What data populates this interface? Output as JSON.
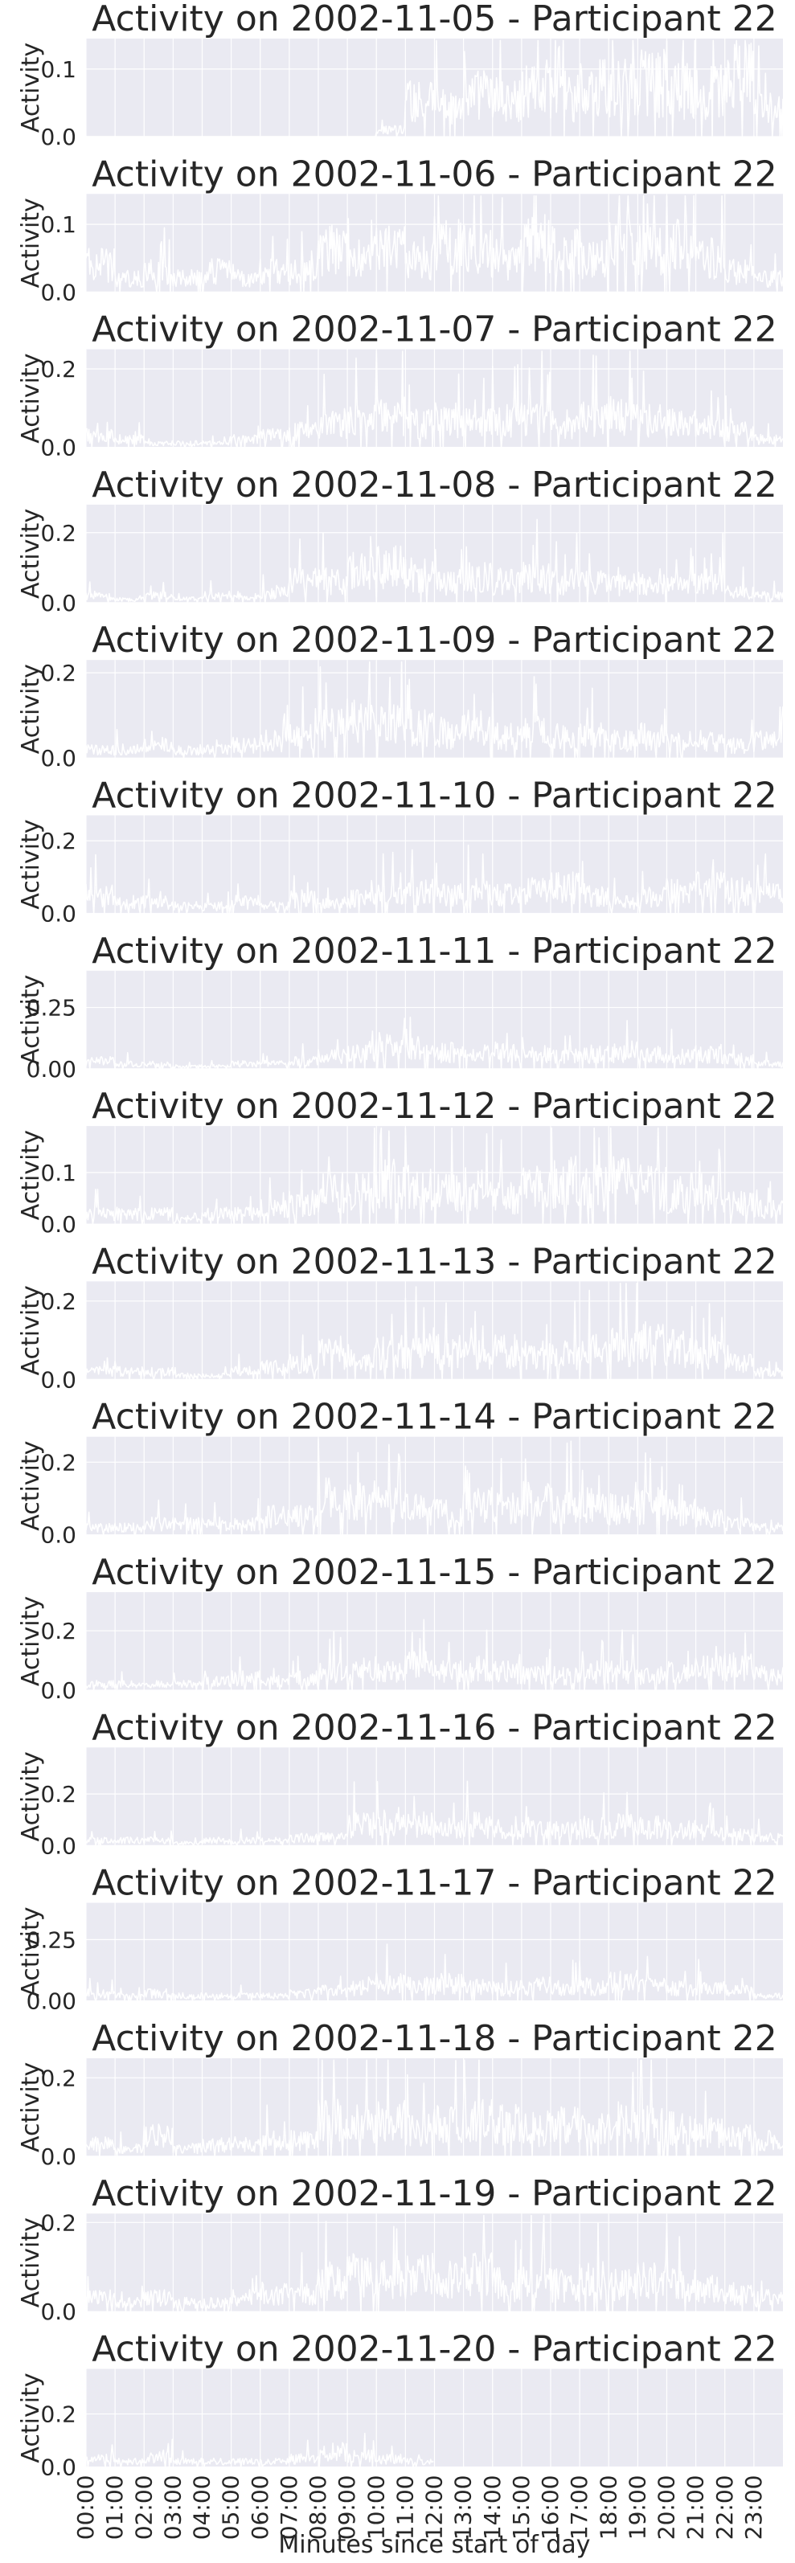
{
  "colors": {
    "panel_bg": "#eaeaf2",
    "grid": "#ffffff",
    "series": "#ffffff",
    "text": "#262626"
  },
  "chart_data": {
    "type": "area",
    "grid": true,
    "xlabel": "Minutes since start of day",
    "xticks": [
      "00:00",
      "01:00",
      "02:00",
      "03:00",
      "04:00",
      "05:00",
      "06:00",
      "07:00",
      "08:00",
      "09:00",
      "10:00",
      "11:00",
      "12:00",
      "13:00",
      "14:00",
      "15:00",
      "16:00",
      "17:00",
      "18:00",
      "19:00",
      "20:00",
      "21:00",
      "22:00",
      "23:00"
    ],
    "ylabel": "Activity",
    "panels": [
      {
        "title": "Activity on 2002-11-05 - Participant 22",
        "ylim": [
          0,
          0.145
        ],
        "yticks": [
          "0.0",
          "0.1"
        ],
        "ytick_values": [
          0,
          0.1
        ],
        "hourly_activity": [
          0,
          0,
          0,
          0,
          0,
          0,
          0,
          0,
          0,
          0,
          0.01,
          0.05,
          0.045,
          0.06,
          0.055,
          0.07,
          0.06,
          0.075,
          0.07,
          0.08,
          0.07,
          0.065,
          0.09,
          0.04
        ]
      },
      {
        "title": "Activity on 2002-11-06 - Participant 22",
        "ylim": [
          0,
          0.145
        ],
        "yticks": [
          "0.0",
          "0.1"
        ],
        "ytick_values": [
          0,
          0.1
        ],
        "hourly_activity": [
          0.04,
          0.02,
          0.03,
          0.02,
          0.03,
          0.02,
          0.03,
          0.03,
          0.06,
          0.05,
          0.06,
          0.05,
          0.07,
          0.06,
          0.05,
          0.07,
          0.06,
          0.05,
          0.07,
          0.06,
          0.07,
          0.05,
          0.03,
          0.02
        ]
      },
      {
        "title": "Activity on 2002-11-07 - Participant 22",
        "ylim": [
          0,
          0.25
        ],
        "yticks": [
          "0.0",
          "0.2"
        ],
        "ytick_values": [
          0,
          0.2
        ],
        "hourly_activity": [
          0.03,
          0.02,
          0.01,
          0.01,
          0.01,
          0.02,
          0.03,
          0.04,
          0.06,
          0.07,
          0.08,
          0.06,
          0.07,
          0.06,
          0.07,
          0.08,
          0.06,
          0.07,
          0.08,
          0.07,
          0.06,
          0.05,
          0.04,
          0.02
        ]
      },
      {
        "title": "Activity on 2002-11-08 - Participant 22",
        "ylim": [
          0,
          0.28
        ],
        "yticks": [
          "0.0",
          "0.2"
        ],
        "ytick_values": [
          0,
          0.2
        ],
        "hourly_activity": [
          0.02,
          0.01,
          0.02,
          0.01,
          0.02,
          0.02,
          0.03,
          0.06,
          0.06,
          0.09,
          0.1,
          0.08,
          0.06,
          0.07,
          0.06,
          0.07,
          0.06,
          0.06,
          0.05,
          0.06,
          0.05,
          0.06,
          0.03,
          0.02
        ]
      },
      {
        "title": "Activity on 2002-11-09 - Participant 22",
        "ylim": [
          0,
          0.23
        ],
        "yticks": [
          "0.0",
          "0.2"
        ],
        "ytick_values": [
          0,
          0.2
        ],
        "hourly_activity": [
          0.02,
          0.02,
          0.03,
          0.02,
          0.02,
          0.03,
          0.04,
          0.05,
          0.07,
          0.09,
          0.08,
          0.07,
          0.06,
          0.07,
          0.05,
          0.06,
          0.05,
          0.05,
          0.04,
          0.05,
          0.04,
          0.04,
          0.03,
          0.04
        ]
      },
      {
        "title": "Activity on 2002-11-10 - Participant 22",
        "ylim": [
          0,
          0.27
        ],
        "yticks": [
          "0.0",
          "0.2"
        ],
        "ytick_values": [
          0,
          0.2
        ],
        "hourly_activity": [
          0.05,
          0.03,
          0.03,
          0.02,
          0.02,
          0.03,
          0.02,
          0.04,
          0.03,
          0.04,
          0.05,
          0.06,
          0.05,
          0.06,
          0.05,
          0.06,
          0.07,
          0.05,
          0.03,
          0.05,
          0.06,
          0.07,
          0.06,
          0.05
        ]
      },
      {
        "title": "Activity on 2002-11-11 - Participant 22",
        "ylim": [
          0,
          0.4
        ],
        "yticks": [
          "0.00",
          "0.25"
        ],
        "ytick_values": [
          0,
          0.25
        ],
        "hourly_activity": [
          0.03,
          0.02,
          0.02,
          0.01,
          0.01,
          0.02,
          0.02,
          0.03,
          0.05,
          0.07,
          0.09,
          0.08,
          0.07,
          0.06,
          0.07,
          0.06,
          0.05,
          0.06,
          0.07,
          0.06,
          0.05,
          0.06,
          0.04,
          0.02
        ]
      },
      {
        "title": "Activity on 2002-11-12 - Participant 22",
        "ylim": [
          0,
          0.19
        ],
        "yticks": [
          "0.0",
          "0.1"
        ],
        "ytick_values": [
          0,
          0.1
        ],
        "hourly_activity": [
          0.02,
          0.02,
          0.02,
          0.01,
          0.02,
          0.02,
          0.03,
          0.04,
          0.06,
          0.06,
          0.08,
          0.07,
          0.06,
          0.07,
          0.05,
          0.07,
          0.08,
          0.07,
          0.08,
          0.07,
          0.06,
          0.06,
          0.04,
          0.03
        ]
      },
      {
        "title": "Activity on 2002-11-13 - Participant 22",
        "ylim": [
          0,
          0.25
        ],
        "yticks": [
          "0.0",
          "0.2"
        ],
        "ytick_values": [
          0,
          0.2
        ],
        "hourly_activity": [
          0.02,
          0.02,
          0.02,
          0.01,
          0.01,
          0.02,
          0.03,
          0.04,
          0.07,
          0.06,
          0.07,
          0.08,
          0.07,
          0.06,
          0.07,
          0.06,
          0.06,
          0.07,
          0.08,
          0.09,
          0.08,
          0.07,
          0.04,
          0.02
        ]
      },
      {
        "title": "Activity on 2002-11-14 - Participant 22",
        "ylim": [
          0,
          0.27
        ],
        "yticks": [
          "0.0",
          "0.2"
        ],
        "ytick_values": [
          0,
          0.2
        ],
        "hourly_activity": [
          0.02,
          0.02,
          0.03,
          0.03,
          0.03,
          0.03,
          0.05,
          0.05,
          0.1,
          0.09,
          0.08,
          0.07,
          0.06,
          0.08,
          0.07,
          0.09,
          0.08,
          0.08,
          0.07,
          0.08,
          0.06,
          0.05,
          0.03,
          0.02
        ]
      },
      {
        "title": "Activity on 2002-11-15 - Participant 22",
        "ylim": [
          0,
          0.33
        ],
        "yticks": [
          "0.0",
          "0.2"
        ],
        "ytick_values": [
          0,
          0.2
        ],
        "hourly_activity": [
          0.02,
          0.02,
          0.02,
          0.02,
          0.03,
          0.04,
          0.03,
          0.04,
          0.06,
          0.07,
          0.06,
          0.08,
          0.06,
          0.07,
          0.06,
          0.05,
          0.05,
          0.06,
          0.06,
          0.05,
          0.06,
          0.07,
          0.08,
          0.05
        ]
      },
      {
        "title": "Activity on 2002-11-16 - Participant 22",
        "ylim": [
          0,
          0.38
        ],
        "yticks": [
          "0.0",
          "0.2"
        ],
        "ytick_values": [
          0,
          0.2
        ],
        "hourly_activity": [
          0.02,
          0.02,
          0.02,
          0.01,
          0.02,
          0.02,
          0.02,
          0.03,
          0.03,
          0.08,
          0.09,
          0.08,
          0.07,
          0.08,
          0.07,
          0.07,
          0.06,
          0.07,
          0.08,
          0.07,
          0.06,
          0.05,
          0.04,
          0.03
        ]
      },
      {
        "title": "Activity on 2002-11-17 - Participant 22",
        "ylim": [
          0,
          0.4
        ],
        "yticks": [
          "0.00",
          "0.25"
        ],
        "ytick_values": [
          0,
          0.25
        ],
        "hourly_activity": [
          0.03,
          0.02,
          0.03,
          0.02,
          0.02,
          0.02,
          0.02,
          0.03,
          0.04,
          0.06,
          0.07,
          0.06,
          0.07,
          0.06,
          0.05,
          0.06,
          0.05,
          0.06,
          0.08,
          0.06,
          0.05,
          0.05,
          0.04,
          0.02
        ]
      },
      {
        "title": "Activity on 2002-11-18 - Participant 22",
        "ylim": [
          0,
          0.25
        ],
        "yticks": [
          "0.0",
          "0.2"
        ],
        "ytick_values": [
          0,
          0.2
        ],
        "hourly_activity": [
          0.03,
          0.02,
          0.05,
          0.02,
          0.03,
          0.03,
          0.04,
          0.04,
          0.09,
          0.08,
          0.09,
          0.07,
          0.08,
          0.09,
          0.08,
          0.07,
          0.08,
          0.07,
          0.09,
          0.08,
          0.07,
          0.06,
          0.05,
          0.04
        ]
      },
      {
        "title": "Activity on 2002-11-19 - Participant 22",
        "ylim": [
          0,
          0.22
        ],
        "yticks": [
          "0.0",
          "0.2"
        ],
        "ytick_values": [
          0,
          0.2
        ],
        "hourly_activity": [
          0.03,
          0.02,
          0.03,
          0.02,
          0.02,
          0.03,
          0.04,
          0.04,
          0.07,
          0.08,
          0.07,
          0.08,
          0.07,
          0.08,
          0.06,
          0.07,
          0.06,
          0.07,
          0.06,
          0.07,
          0.06,
          0.05,
          0.04,
          0.03
        ]
      },
      {
        "title": "Activity on 2002-11-20 - Participant 22",
        "ylim": [
          0,
          0.37
        ],
        "yticks": [
          "0.0",
          "0.2"
        ],
        "ytick_values": [
          0,
          0.2
        ],
        "hourly_activity": [
          0.03,
          0.02,
          0.04,
          0.02,
          0.02,
          0.02,
          0.02,
          0.03,
          0.06,
          0.04,
          0.03,
          0.02,
          null,
          null,
          null,
          null,
          null,
          null,
          null,
          null,
          null,
          null,
          null,
          null
        ]
      }
    ]
  }
}
